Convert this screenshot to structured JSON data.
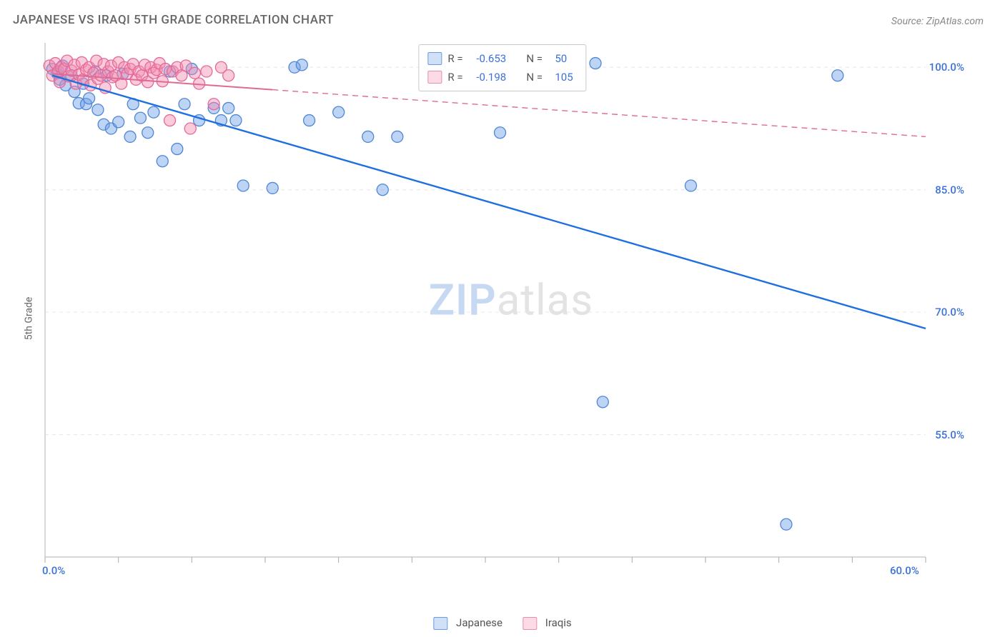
{
  "title": "JAPANESE VS IRAQI 5TH GRADE CORRELATION CHART",
  "source": "Source: ZipAtlas.com",
  "ylabel": "5th Grade",
  "watermark_a": "ZIP",
  "watermark_b": "atlas",
  "chart": {
    "type": "scatter",
    "background_color": "#ffffff",
    "grid_color": "#e6e6e6",
    "border_color": "#cccccc",
    "tick_color": "#aaaaaa",
    "x": {
      "min": 0.0,
      "max": 60.0,
      "label_min": "0.0%",
      "label_max": "60.0%",
      "ticks": [
        0,
        5,
        10,
        15,
        20,
        25,
        30,
        35,
        40,
        45,
        50,
        55,
        60
      ]
    },
    "y": {
      "min": 40.0,
      "max": 103.0,
      "grid_values": [
        55.0,
        70.0,
        85.0,
        100.0
      ],
      "labels": [
        "55.0%",
        "70.0%",
        "85.0%",
        "100.0%"
      ]
    },
    "series": [
      {
        "name": "Japanese",
        "color_fill": "rgba(110,160,230,0.45)",
        "color_stroke": "#4f87d6",
        "marker_radius": 8,
        "line_color": "#1e6fe0",
        "line_width": 2.4,
        "line_dash": "",
        "line_x1": 0.5,
        "line_y1": 99.0,
        "line_x2": 60.0,
        "line_y2": 68.0,
        "line_solid_until_x": 60.0,
        "points": [
          [
            0.5,
            99.8
          ],
          [
            0.8,
            99.3
          ],
          [
            1.0,
            98.5
          ],
          [
            1.2,
            100.2
          ],
          [
            1.4,
            97.8
          ],
          [
            1.8,
            99.0
          ],
          [
            2.0,
            97.0
          ],
          [
            2.3,
            95.6
          ],
          [
            2.6,
            98.0
          ],
          [
            2.8,
            95.5
          ],
          [
            3.0,
            96.2
          ],
          [
            3.4,
            99.5
          ],
          [
            3.6,
            94.8
          ],
          [
            4.0,
            93.0
          ],
          [
            4.2,
            99.0
          ],
          [
            4.5,
            92.5
          ],
          [
            5.0,
            93.3
          ],
          [
            5.3,
            99.2
          ],
          [
            5.8,
            91.5
          ],
          [
            6.0,
            95.5
          ],
          [
            6.5,
            93.8
          ],
          [
            7.0,
            92.0
          ],
          [
            7.4,
            94.5
          ],
          [
            8.0,
            88.5
          ],
          [
            8.5,
            99.5
          ],
          [
            9.0,
            90.0
          ],
          [
            9.5,
            95.5
          ],
          [
            10.0,
            99.8
          ],
          [
            10.5,
            93.5
          ],
          [
            11.5,
            95.0
          ],
          [
            12.0,
            93.5
          ],
          [
            12.5,
            95.0
          ],
          [
            13.0,
            93.5
          ],
          [
            13.5,
            85.5
          ],
          [
            15.5,
            85.2
          ],
          [
            17.0,
            100.0
          ],
          [
            17.5,
            100.3
          ],
          [
            18.0,
            93.5
          ],
          [
            20.0,
            94.5
          ],
          [
            22.0,
            91.5
          ],
          [
            23.0,
            85.0
          ],
          [
            24.0,
            91.5
          ],
          [
            31.0,
            92.0
          ],
          [
            37.5,
            100.5
          ],
          [
            38.0,
            59.0
          ],
          [
            44.0,
            85.5
          ],
          [
            50.5,
            44.0
          ],
          [
            54.0,
            99.0
          ]
        ]
      },
      {
        "name": "Iraqis",
        "color_fill": "rgba(245,140,175,0.45)",
        "color_stroke": "#e36a98",
        "marker_radius": 8,
        "line_color": "#e06a95",
        "line_width": 2.0,
        "line_dash": "8 6",
        "line_x1": 0.5,
        "line_y1": 99.2,
        "line_x2": 60.0,
        "line_y2": 91.5,
        "line_solid_until_x": 15.5,
        "points": [
          [
            0.3,
            100.2
          ],
          [
            0.5,
            99.0
          ],
          [
            0.7,
            100.5
          ],
          [
            0.9,
            99.5
          ],
          [
            1.0,
            98.2
          ],
          [
            1.1,
            100.0
          ],
          [
            1.3,
            99.8
          ],
          [
            1.5,
            100.8
          ],
          [
            1.6,
            98.9
          ],
          [
            1.8,
            99.6
          ],
          [
            2.0,
            100.3
          ],
          [
            2.1,
            98.0
          ],
          [
            2.3,
            99.1
          ],
          [
            2.5,
            100.6
          ],
          [
            2.6,
            98.5
          ],
          [
            2.8,
            99.7
          ],
          [
            3.0,
            100.0
          ],
          [
            3.1,
            97.8
          ],
          [
            3.3,
            99.3
          ],
          [
            3.5,
            100.8
          ],
          [
            3.6,
            98.6
          ],
          [
            3.8,
            99.0
          ],
          [
            4.0,
            100.4
          ],
          [
            4.1,
            97.5
          ],
          [
            4.3,
            99.5
          ],
          [
            4.5,
            100.2
          ],
          [
            4.6,
            98.8
          ],
          [
            4.8,
            99.0
          ],
          [
            5.0,
            100.6
          ],
          [
            5.2,
            98.0
          ],
          [
            5.4,
            100.0
          ],
          [
            5.6,
            99.2
          ],
          [
            5.8,
            99.8
          ],
          [
            6.0,
            100.4
          ],
          [
            6.2,
            98.5
          ],
          [
            6.4,
            99.5
          ],
          [
            6.6,
            99.0
          ],
          [
            6.8,
            100.3
          ],
          [
            7.0,
            98.2
          ],
          [
            7.2,
            100.0
          ],
          [
            7.4,
            99.3
          ],
          [
            7.6,
            99.7
          ],
          [
            7.8,
            100.5
          ],
          [
            8.0,
            98.3
          ],
          [
            8.2,
            99.8
          ],
          [
            8.5,
            93.5
          ],
          [
            8.7,
            99.5
          ],
          [
            9.0,
            100.0
          ],
          [
            9.3,
            99.0
          ],
          [
            9.6,
            100.2
          ],
          [
            9.9,
            92.5
          ],
          [
            10.2,
            99.3
          ],
          [
            10.5,
            98.0
          ],
          [
            11.0,
            99.5
          ],
          [
            11.5,
            95.5
          ],
          [
            12.0,
            100.0
          ],
          [
            12.5,
            99.0
          ]
        ]
      }
    ],
    "legend_top": [
      {
        "swatch_fill": "#cfe0f7",
        "swatch_border": "#6a9adf",
        "r": "-0.653",
        "n": "50"
      },
      {
        "swatch_fill": "#fcdbe6",
        "swatch_border": "#e68db0",
        "r": "-0.198",
        "n": "105"
      }
    ],
    "legend_top_labels": {
      "r": "R =",
      "n": "N ="
    },
    "legend_bottom": [
      {
        "swatch_fill": "#cfe0f7",
        "swatch_border": "#6a9adf",
        "label": "Japanese"
      },
      {
        "swatch_fill": "#fcdbe6",
        "swatch_border": "#e68db0",
        "label": "Iraqis"
      }
    ]
  }
}
